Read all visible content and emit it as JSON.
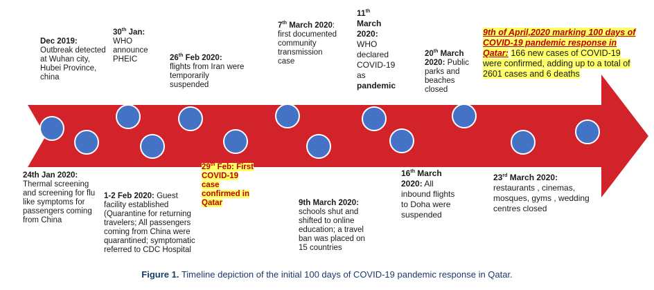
{
  "colors": {
    "arrow": "#d2232a",
    "dot": "#4472c4",
    "dot_border": "#ffffff",
    "highlight": "#ffff66",
    "highlight_text": "#c00000"
  },
  "events": {
    "dec2019": {
      "date": "Dec 2019:",
      "text": "Outbreak detected at Wuhan city, Hubei Province, china"
    },
    "jan30": {
      "day": "30",
      "sup": "th",
      "month": " Jan:",
      "text": "WHO announce PHEIC"
    },
    "feb26": {
      "day": "26",
      "sup": "th",
      "month": " Feb 2020:",
      "text": "flights from Iran were temporarily suspended"
    },
    "mar7": {
      "day": "7",
      "sup": "th",
      "month": " March 2020",
      "text": ": first documented community transmission case"
    },
    "mar11": {
      "day": "11",
      "sup": "th",
      "month": "March 2020:",
      "text": "WHO declared COVID-19 as",
      "bold_tail": "pandemic"
    },
    "mar20": {
      "day": "20",
      "sup": "th",
      "month": " March 2020:",
      "text": "Public parks and beaches closed"
    },
    "apr9": {
      "highlight": "9th of April,2020 marking 100 days of COVID-19 pandemic response in Qatar:",
      "text": "166 new cases of COVID-19 were confirmed, adding up to a total of 2601 cases and 6 deaths"
    },
    "jan24": {
      "date": "24th Jan 2020:",
      "text": "Thermal screening and screening for flu like symptoms for passengers coming from China"
    },
    "feb1_2": {
      "date": "1-2 Feb 2020:",
      "text": "Guest facility established (Quarantine for returning travelers; All passengers coming from China were quarantined; symptomatic referred to CDC Hospital"
    },
    "feb29": {
      "day": "29",
      "sup": "th",
      "month": " Feb: First COVID-19 case confirmed in Qatar"
    },
    "mar9": {
      "date": "9th March 2020:",
      "text": "schools shut and shifted to online education; a travel ban was placed on 15 countries"
    },
    "mar16": {
      "day": "16",
      "sup": "th",
      "month": " March 2020:",
      "text": "All inbound flights to Doha were suspended"
    },
    "mar23": {
      "day": "23",
      "sup": "rd",
      "month": " March 2020:",
      "text": "restaurants , cinemas, mosques, gyms , wedding centres closed"
    }
  },
  "caption": {
    "prefix": "Figure 1.",
    "text": " Timeline depiction of the initial 100 days of COVID-19 pandemic response in Qatar."
  }
}
